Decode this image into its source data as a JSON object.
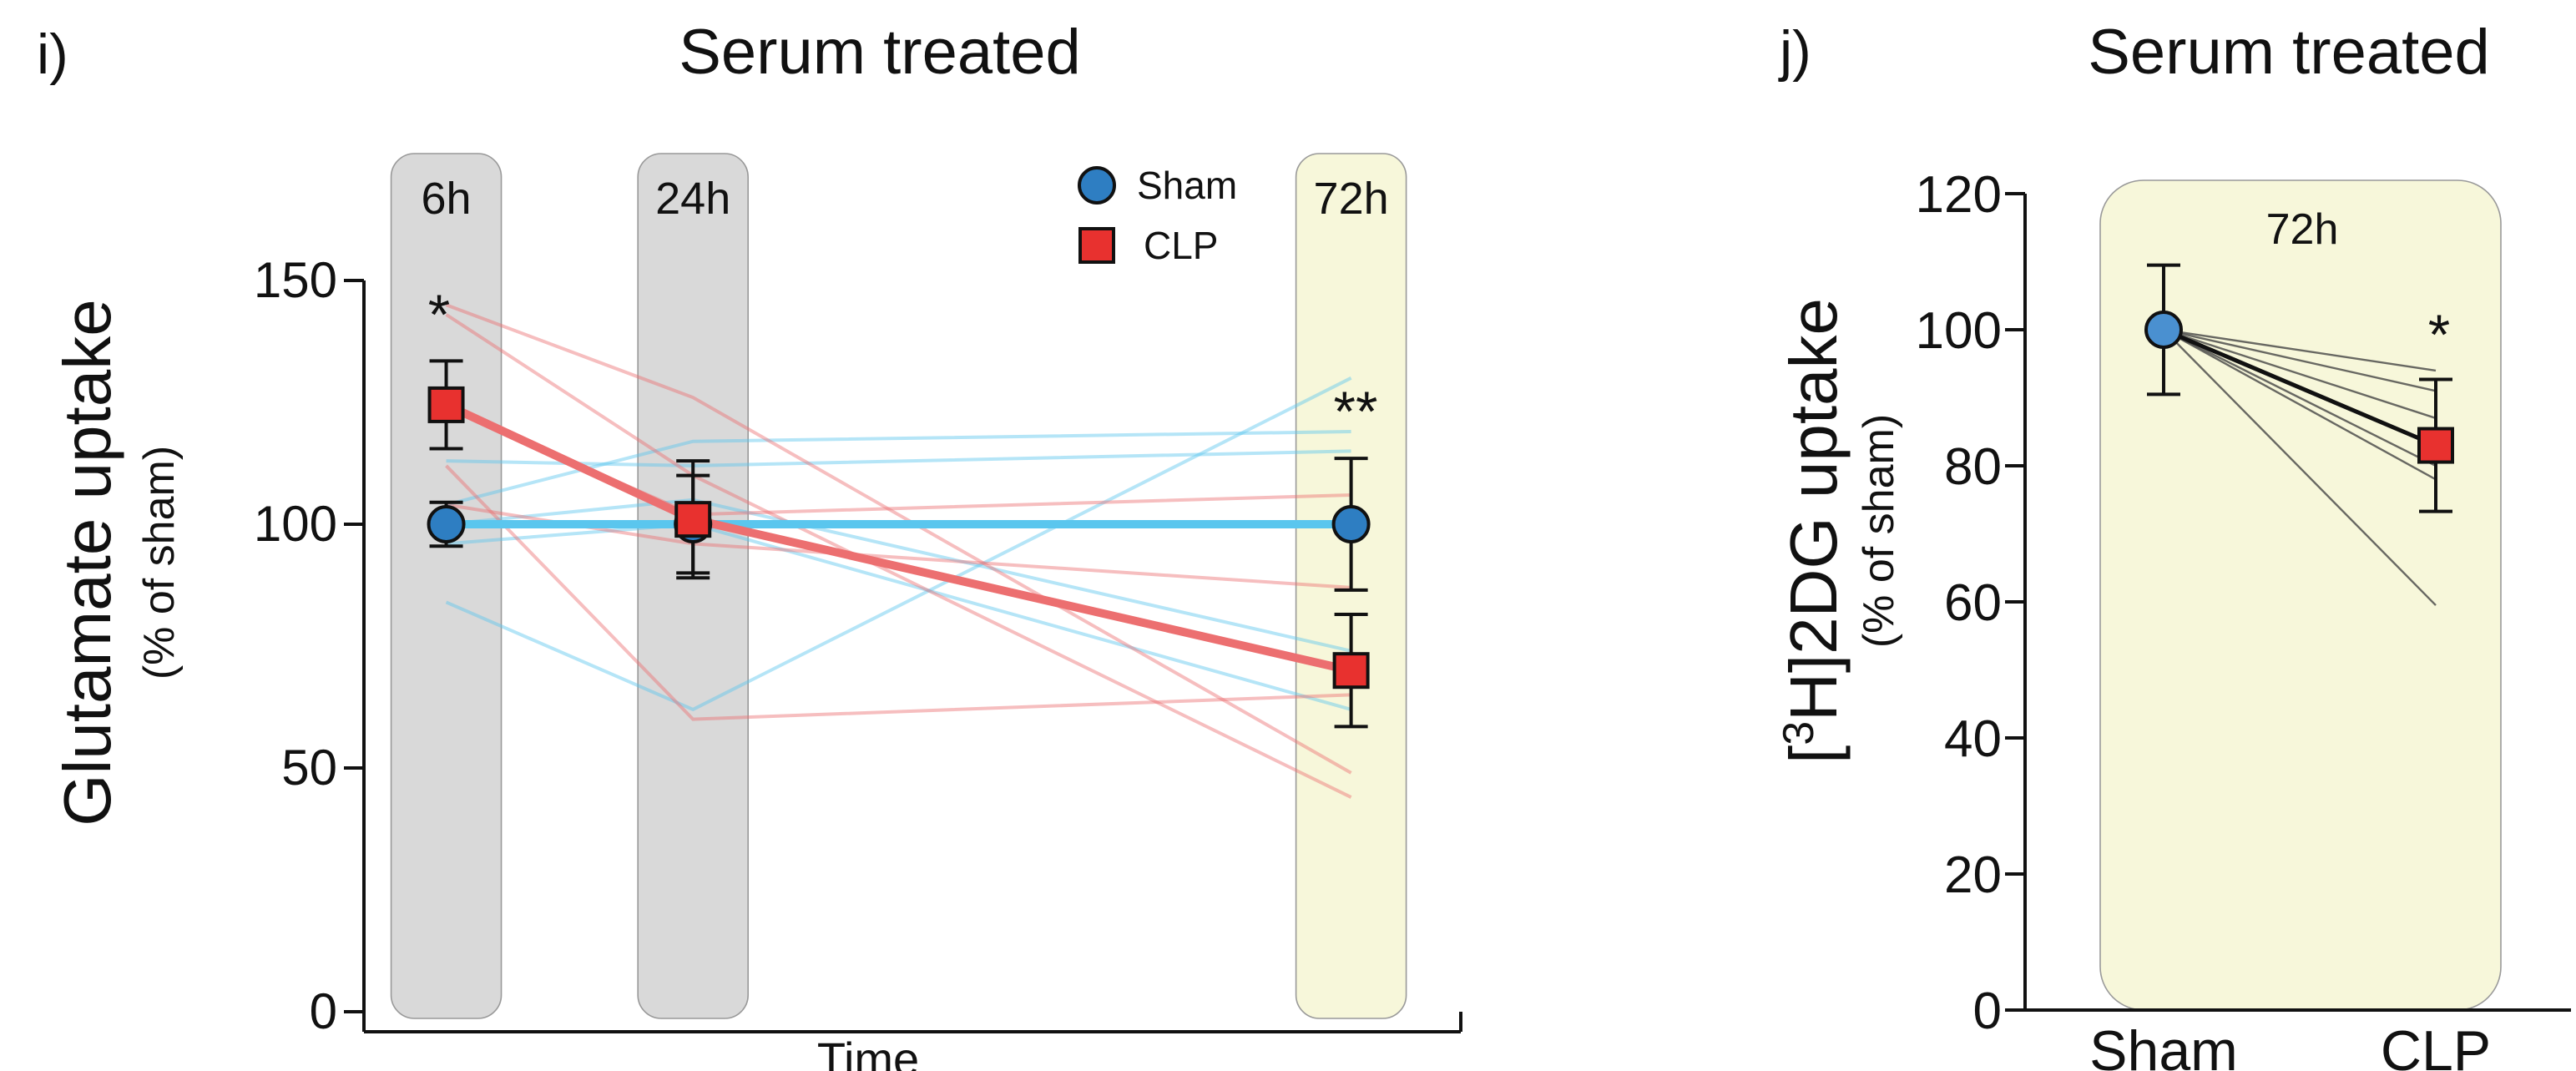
{
  "chart_data": [
    {
      "type": "line",
      "panel_label": "i)",
      "title": "Serum treated",
      "xlabel": "Time",
      "ylabel": "Glutamate uptake",
      "ylabel_sub": "(% of sham)",
      "x": [
        {
          "value": 6,
          "label": "6h"
        },
        {
          "value": 24,
          "label": "24h"
        },
        {
          "value": 72,
          "label": "72h"
        }
      ],
      "xlim": [
        0,
        80
      ],
      "ylim": [
        0,
        150
      ],
      "yticks": [
        0,
        50,
        100,
        150
      ],
      "band_colors": [
        "#d9d9d9",
        "#d9d9d9",
        "#f7f7da"
      ],
      "legend": "top",
      "series": [
        {
          "name": "Sham",
          "color": "#2e7ec2",
          "line_color": "#5ac6ee",
          "values": [
            100,
            100,
            100
          ],
          "errors": [
            4.5,
            10,
            13.5
          ],
          "individuals": [
            [
              84,
              62,
              130
            ],
            [
              104,
              117,
              119
            ],
            [
              113,
              112,
              115
            ],
            [
              100,
              105,
              74
            ],
            [
              96,
              100,
              62
            ]
          ]
        },
        {
          "name": "CLP",
          "color": "#e8312f",
          "line_color": "#ec6f70",
          "values": [
            124.5,
            101,
            70
          ],
          "errors": [
            9,
            12,
            11.5
          ],
          "individuals": [
            [
              145,
              126,
              49
            ],
            [
              143,
              110,
              44
            ],
            [
              124,
              102,
              106
            ],
            [
              112,
              60,
              65
            ],
            [
              104,
              96,
              87
            ]
          ]
        }
      ],
      "annotations": [
        "*",
        "**"
      ]
    },
    {
      "type": "dot-line",
      "panel_label": "j)",
      "title": "Serum treated",
      "band_label": "72h",
      "ylabel_parts": [
        "[",
        "3",
        "H]2DG uptake"
      ],
      "ylabel_sub": "(% of sham)",
      "categories": [
        "Sham",
        "CLP"
      ],
      "colors": [
        "#4a90d0",
        "#e8312f"
      ],
      "band_color": "#f7f7da",
      "values": [
        100,
        83
      ],
      "errors": [
        9.5,
        9.7
      ],
      "individuals": [
        [
          100,
          94
        ],
        [
          100,
          91
        ],
        [
          100,
          87
        ],
        [
          100,
          80
        ],
        [
          100,
          78
        ],
        [
          100,
          59.5
        ]
      ],
      "ylim": [
        0,
        120
      ],
      "yticks": [
        0,
        20,
        40,
        60,
        80,
        100,
        120
      ],
      "annotations": [
        "*"
      ]
    }
  ]
}
